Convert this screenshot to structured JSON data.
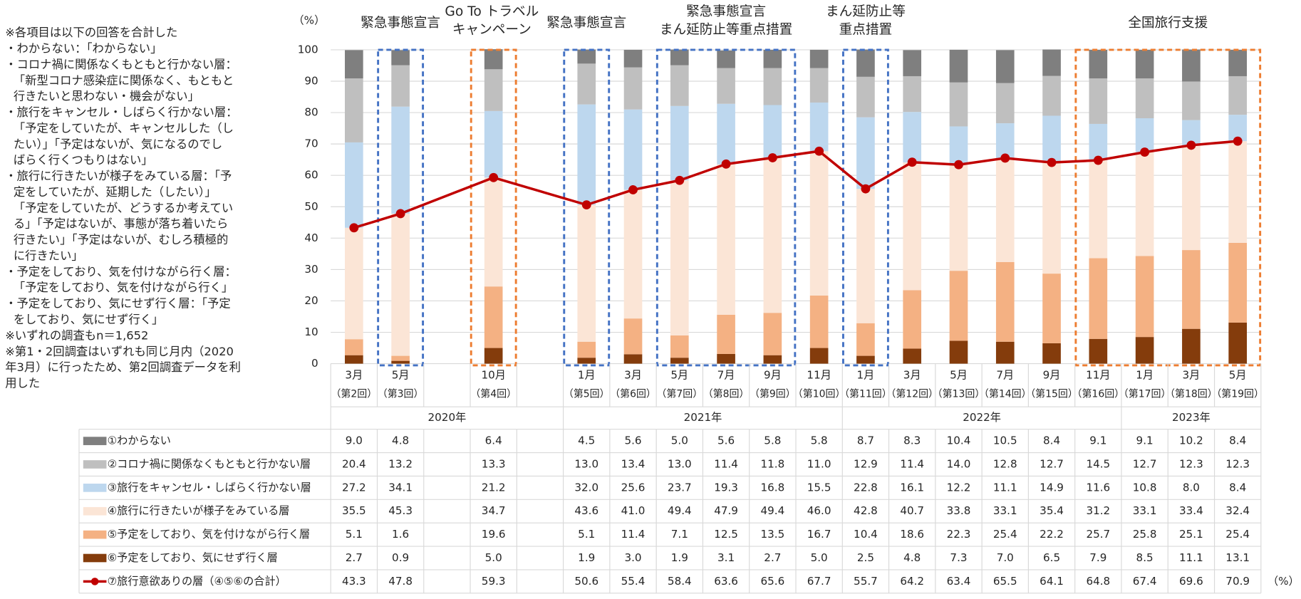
{
  "chart_data": {
    "type": "bar",
    "stacked": true,
    "y_unit": "（%）",
    "table_unit": "（%）",
    "notes": [
      "※各項目は以下の回答を合計した",
      "・わからない：「わからない」",
      "・コロナ禍に関係なくもともと行かない層：",
      "「新型コロナ感染症に関係なく、もともと",
      "行きたいと思わない・機会がない」",
      "・旅行をキャンセル・しばらく行かない層：",
      "「予定をしていたが、キャンセルした（し",
      "たい）」「予定はないが、気になるのでし",
      "ばらく行くつもりはない」",
      "・旅行に行きたいが様子をみている層：「予",
      "定をしていたが、延期した（したい）」",
      "「予定をしていたが、どうするか考えてい",
      "る」「予定はないが、事態が落ち着いたら",
      "行きたい」「予定はないが、むしろ積極的",
      "に行きたい」",
      "・予定をしており、気を付けながら行く層：",
      "「予定をしており、気を付けながら行く」",
      "・予定をしており、気にせず行く層：「予定",
      "をしており、気にせず行く」",
      "※いずれの調査もn＝1,652",
      "※第1・2回調査はいずれも同じ月内（2020",
      "年3月）に行ったため、第2回調査データを利",
      "用した"
    ],
    "annotations": [
      [
        "緊急事態宣言"
      ],
      [
        "Go To トラベル",
        "キャンペーン"
      ],
      [
        "緊急事態宣言"
      ],
      [
        "緊急事態宣言",
        "まん延防止等重点措置"
      ],
      [
        "まん延防止等",
        "重点措置"
      ],
      [
        "全国旅行支援"
      ]
    ],
    "highlight_colors": [
      "#4472c4",
      "#ed7d31"
    ],
    "categories": [
      "3月",
      "5月",
      null,
      "10月",
      null,
      "1月",
      "3月",
      "5月",
      "7月",
      "9月",
      "11月",
      "1月",
      "3月",
      "5月",
      "7月",
      "9月",
      "11月",
      "1月",
      "3月",
      "5月"
    ],
    "rounds": [
      "（第2回）",
      "（第3回）",
      null,
      "（第4回）",
      null,
      "（第5回）",
      "（第6回）",
      "（第7回）",
      "（第8回）",
      "（第9回）",
      "（第10回）",
      "（第11回）",
      "（第12回）",
      "（第13回）",
      "（第14回）",
      "（第15回）",
      "（第16回）",
      "（第17回）",
      "（第18回）",
      "（第19回）"
    ],
    "years": [
      "2020年",
      "2021年",
      "2022年",
      "2023年"
    ],
    "ylim": [
      0,
      100
    ],
    "yticks": [
      0,
      10,
      20,
      30,
      40,
      50,
      60,
      70,
      80,
      90,
      100
    ],
    "grid": true,
    "series": [
      {
        "name": "①わからない",
        "color": "#7f7f7f",
        "values": [
          9.0,
          4.8,
          null,
          6.4,
          null,
          4.5,
          5.6,
          5.0,
          5.6,
          5.8,
          5.8,
          8.7,
          8.3,
          10.4,
          10.5,
          8.4,
          9.1,
          9.1,
          10.2,
          8.4
        ],
        "value_labels": [
          "9.0",
          "4.8",
          null,
          "6.4",
          null,
          "4.5",
          "5.6",
          "5.0",
          "5.6",
          "5.8",
          "5.8",
          "8.7",
          "8.3",
          "10.4",
          "10.5",
          "8.4",
          "9.1",
          "9.1",
          "10.2",
          "8.4"
        ]
      },
      {
        "name": "②コロナ禍に関係なくもともと行かない層",
        "color": "#bfbfbf",
        "values": [
          20.4,
          13.2,
          null,
          13.3,
          null,
          13.0,
          13.4,
          13.0,
          11.4,
          11.8,
          11.0,
          12.9,
          11.4,
          14.0,
          12.8,
          12.7,
          14.5,
          12.7,
          12.3,
          12.3
        ],
        "value_labels": [
          "20.4",
          "13.2",
          null,
          "13.3",
          null,
          "13.0",
          "13.4",
          "13.0",
          "11.4",
          "11.8",
          "11.0",
          "12.9",
          "11.4",
          "14.0",
          "12.8",
          "12.7",
          "14.5",
          "12.7",
          "12.3",
          "12.3"
        ]
      },
      {
        "name": "③旅行をキャンセル・しばらく行かない層",
        "color": "#bdd7ee",
        "values": [
          27.2,
          34.1,
          null,
          21.2,
          null,
          32.0,
          25.6,
          23.7,
          19.3,
          16.8,
          15.5,
          22.8,
          16.1,
          12.2,
          11.1,
          14.9,
          11.6,
          10.8,
          8.0,
          8.4
        ],
        "value_labels": [
          "27.2",
          "34.1",
          null,
          "21.2",
          null,
          "32.0",
          "25.6",
          "23.7",
          "19.3",
          "16.8",
          "15.5",
          "22.8",
          "16.1",
          "12.2",
          "11.1",
          "14.9",
          "11.6",
          "10.8",
          "8.0",
          "8.4"
        ]
      },
      {
        "name": "④旅行に行きたいが様子をみている層",
        "color": "#fbe5d6",
        "values": [
          35.5,
          45.3,
          null,
          34.7,
          null,
          43.6,
          41.0,
          49.4,
          47.9,
          49.4,
          46.0,
          42.8,
          40.7,
          33.8,
          33.1,
          35.4,
          31.2,
          33.1,
          33.4,
          32.4
        ],
        "value_labels": [
          "35.5",
          "45.3",
          null,
          "34.7",
          null,
          "43.6",
          "41.0",
          "49.4",
          "47.9",
          "49.4",
          "46.0",
          "42.8",
          "40.7",
          "33.8",
          "33.1",
          "35.4",
          "31.2",
          "33.1",
          "33.4",
          "32.4"
        ]
      },
      {
        "name": "⑤予定をしており、気を付けながら行く層",
        "color": "#f4b183",
        "values": [
          5.1,
          1.6,
          null,
          19.6,
          null,
          5.1,
          11.4,
          7.1,
          12.5,
          13.5,
          16.7,
          10.4,
          18.6,
          22.3,
          25.4,
          22.2,
          25.7,
          25.8,
          25.1,
          25.4
        ],
        "value_labels": [
          "5.1",
          "1.6",
          null,
          "19.6",
          null,
          "5.1",
          "11.4",
          "7.1",
          "12.5",
          "13.5",
          "16.7",
          "10.4",
          "18.6",
          "22.3",
          "25.4",
          "22.2",
          "25.7",
          "25.8",
          "25.1",
          "25.4"
        ]
      },
      {
        "name": "⑥予定をしており、気にせず行く層",
        "color": "#843c0c",
        "values": [
          2.7,
          0.9,
          null,
          5.0,
          null,
          1.9,
          3.0,
          1.9,
          3.1,
          2.7,
          5.0,
          2.5,
          4.8,
          7.3,
          7.0,
          6.5,
          7.9,
          8.5,
          11.1,
          13.1
        ],
        "value_labels": [
          "2.7",
          "0.9",
          null,
          "5.0",
          null,
          "1.9",
          "3.0",
          "1.9",
          "3.1",
          "2.7",
          "5.0",
          "2.5",
          "4.8",
          "7.3",
          "7.0",
          "6.5",
          "7.9",
          "8.5",
          "11.1",
          "13.1"
        ]
      },
      {
        "name": "⑦旅行意欲ありの層（④⑤⑥の合計）",
        "color": "#c00000",
        "type": "line",
        "values": [
          43.3,
          47.8,
          null,
          59.3,
          null,
          50.6,
          55.4,
          58.4,
          63.6,
          65.6,
          67.7,
          55.7,
          64.2,
          63.4,
          65.5,
          64.1,
          64.8,
          67.4,
          69.6,
          70.9
        ],
        "value_labels": [
          "43.3",
          "47.8",
          null,
          "59.3",
          null,
          "50.6",
          "55.4",
          "58.4",
          "63.6",
          "65.6",
          "67.7",
          "55.7",
          "64.2",
          "63.4",
          "65.5",
          "64.1",
          "64.8",
          "67.4",
          "69.6",
          "70.9"
        ]
      }
    ]
  }
}
